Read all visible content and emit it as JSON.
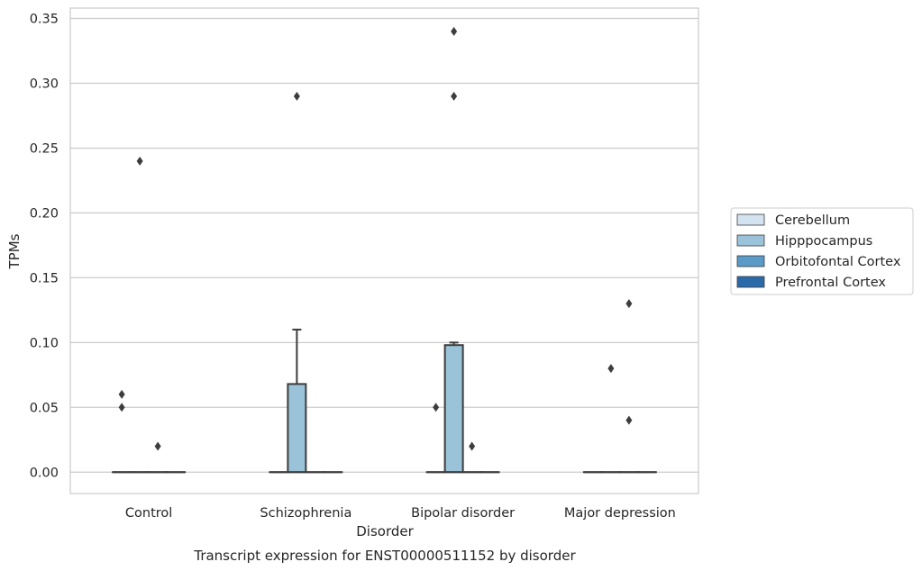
{
  "chart_data": {
    "type": "box",
    "caption": "Transcript expression for ENST00000511152 by disorder",
    "xlabel": "Disorder",
    "ylabel": "TPMs",
    "ylim": [
      -0.0165,
      0.358
    ],
    "yticks": [
      0.0,
      0.05,
      0.1,
      0.15,
      0.2,
      0.25,
      0.3,
      0.35
    ],
    "ytick_labels": [
      "0.00",
      "0.05",
      "0.10",
      "0.15",
      "0.20",
      "0.25",
      "0.30",
      "0.35"
    ],
    "categories": [
      "Control",
      "Schizophrenia",
      "Bipolar disorder",
      "Major depression"
    ],
    "grid": "horizontal",
    "legend_position": "center-right-outside",
    "series": [
      {
        "name": "Cerebellum",
        "color": "#d4e3f0",
        "boxes": [
          {
            "q1": 0,
            "median": 0,
            "q3": 0,
            "whisker_low": 0,
            "whisker_high": 0,
            "outliers": [
              0.06,
              0.05
            ]
          },
          {
            "q1": 0,
            "median": 0,
            "q3": 0,
            "whisker_low": 0,
            "whisker_high": 0,
            "outliers": []
          },
          {
            "q1": 0,
            "median": 0,
            "q3": 0,
            "whisker_low": 0,
            "whisker_high": 0,
            "outliers": [
              0.05
            ]
          },
          {
            "q1": 0,
            "median": 0,
            "q3": 0,
            "whisker_low": 0,
            "whisker_high": 0,
            "outliers": []
          }
        ]
      },
      {
        "name": "Hipppocampus",
        "color": "#9ac3da",
        "boxes": [
          {
            "q1": 0,
            "median": 0,
            "q3": 0,
            "whisker_low": 0,
            "whisker_high": 0,
            "outliers": [
              0.24
            ]
          },
          {
            "q1": 0,
            "median": 0,
            "q3": 0.068,
            "whisker_low": 0,
            "whisker_high": 0.11,
            "outliers": [
              0.29
            ]
          },
          {
            "q1": 0,
            "median": 0,
            "q3": 0.098,
            "whisker_low": 0,
            "whisker_high": 0.1,
            "outliers": [
              0.34,
              0.29
            ]
          },
          {
            "q1": 0,
            "median": 0,
            "q3": 0,
            "whisker_low": 0,
            "whisker_high": 0,
            "outliers": [
              0.08
            ]
          }
        ]
      },
      {
        "name": "Orbitofontal Cortex",
        "color": "#5a9ac6",
        "boxes": [
          {
            "q1": 0,
            "median": 0,
            "q3": 0,
            "whisker_low": 0,
            "whisker_high": 0,
            "outliers": [
              0.02
            ]
          },
          {
            "q1": 0,
            "median": 0,
            "q3": 0,
            "whisker_low": 0,
            "whisker_high": 0,
            "outliers": []
          },
          {
            "q1": 0,
            "median": 0,
            "q3": 0,
            "whisker_low": 0,
            "whisker_high": 0,
            "outliers": [
              0.02
            ]
          },
          {
            "q1": 0,
            "median": 0,
            "q3": 0,
            "whisker_low": 0,
            "whisker_high": 0,
            "outliers": [
              0.13,
              0.04
            ]
          }
        ]
      },
      {
        "name": "Prefrontal Cortex",
        "color": "#2a6aa8",
        "boxes": [
          {
            "q1": 0,
            "median": 0,
            "q3": 0,
            "whisker_low": 0,
            "whisker_high": 0,
            "outliers": []
          },
          {
            "q1": 0,
            "median": 0,
            "q3": 0,
            "whisker_low": 0,
            "whisker_high": 0,
            "outliers": []
          },
          {
            "q1": 0,
            "median": 0,
            "q3": 0,
            "whisker_low": 0,
            "whisker_high": 0,
            "outliers": []
          },
          {
            "q1": 0,
            "median": 0,
            "q3": 0,
            "whisker_low": 0,
            "whisker_high": 0,
            "outliers": []
          }
        ]
      }
    ]
  }
}
